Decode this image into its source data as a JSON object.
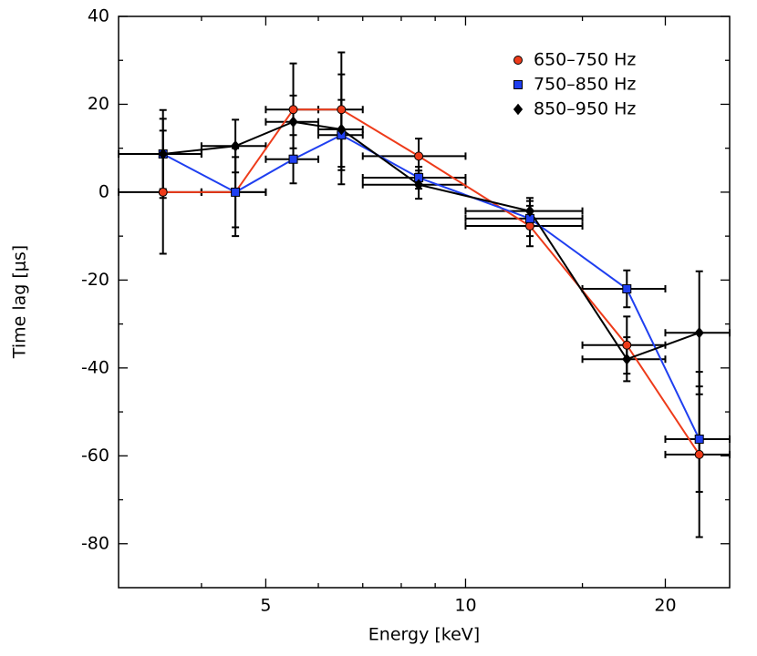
{
  "chart_data": {
    "type": "errorbar-line",
    "xlabel": "Energy [keV]",
    "ylabel": "Time lag [μs]",
    "xscale": "log",
    "x": [
      3.5,
      4.5,
      5.5,
      6.5,
      8.5,
      12.5,
      17.5,
      22.5
    ],
    "bin_edges": [
      3,
      4,
      5,
      6,
      7,
      10,
      15,
      20,
      25
    ],
    "series": [
      {
        "name": "650–750 Hz",
        "color": "#ee3b1a",
        "marker": "circle",
        "values": [
          0,
          0,
          18.8,
          18.8,
          8.2,
          -7.7,
          -34.8,
          -59.7
        ],
        "yerr": [
          14,
          8,
          10.5,
          13,
          4,
          4.6,
          6.5,
          18.8
        ]
      },
      {
        "name": "750–850 Hz",
        "color": "#1f3ff0",
        "marker": "square",
        "values": [
          8.7,
          0,
          7.5,
          13,
          3.3,
          -6,
          -22,
          -56.2
        ],
        "yerr": [
          10,
          10,
          5.5,
          8,
          2.5,
          4,
          4.2,
          12
        ]
      },
      {
        "name": "850–950 Hz",
        "color": "#000000",
        "marker": "diamond",
        "values": [
          8.7,
          10.5,
          16,
          14.3,
          1.7,
          -4.3,
          -38,
          -32
        ],
        "yerr": [
          8,
          6,
          6,
          12.5,
          3.2,
          3,
          5,
          14
        ]
      }
    ],
    "xlim": [
      3,
      25
    ],
    "xticks": [
      5,
      10,
      20
    ],
    "xminorticks": [
      4,
      6,
      7,
      8,
      9,
      15
    ],
    "ylim": [
      -90,
      40
    ],
    "yticks": [
      -80,
      -60,
      -40,
      -20,
      0,
      20,
      40
    ],
    "yminorticks": [
      -70,
      -50,
      -30,
      -10,
      10,
      30
    ],
    "legend": "upper right"
  }
}
